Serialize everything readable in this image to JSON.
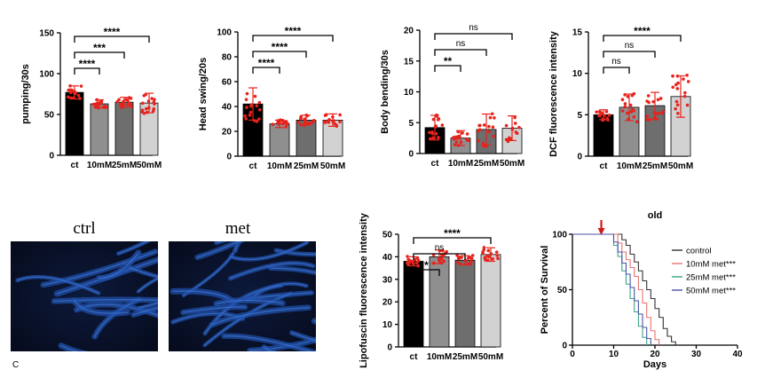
{
  "chart_data": [
    {
      "type": "bar",
      "ylabel": "pumping/30s",
      "categories": [
        "ct",
        "10mM",
        "25mM",
        "50mM"
      ],
      "values": [
        77,
        63,
        65,
        64
      ],
      "errors": [
        8,
        5,
        6,
        12
      ],
      "ylim": [
        0,
        150
      ],
      "yticks": [
        "0",
        "50",
        "100",
        "150"
      ],
      "colors": [
        "#000000",
        "#8f8f8f",
        "#6e6e6e",
        "#d2d2d2"
      ],
      "brackets": [
        {
          "from": 0,
          "to": 1,
          "label": "****"
        },
        {
          "from": 0,
          "to": 2,
          "label": "***"
        },
        {
          "from": 0,
          "to": 3,
          "label": "****"
        }
      ]
    },
    {
      "type": "bar",
      "ylabel": "Head swing/20s",
      "categories": [
        "ct",
        "10mM",
        "25mM",
        "50mM"
      ],
      "values": [
        42,
        26,
        29,
        29
      ],
      "errors": [
        13,
        3,
        4,
        5
      ],
      "ylim": [
        0,
        100
      ],
      "yticks": [
        "0",
        "20",
        "40",
        "60",
        "80",
        "100"
      ],
      "colors": [
        "#000000",
        "#8f8f8f",
        "#6e6e6e",
        "#d2d2d2"
      ],
      "brackets": [
        {
          "from": 0,
          "to": 1,
          "label": "****"
        },
        {
          "from": 0,
          "to": 2,
          "label": "****"
        },
        {
          "from": 0,
          "to": 3,
          "label": "****"
        }
      ]
    },
    {
      "type": "bar",
      "ylabel": "Body bending/30s",
      "categories": [
        "ct",
        "10mM",
        "25mM",
        "50mM"
      ],
      "values": [
        4.2,
        2.5,
        3.9,
        4.1
      ],
      "errors": [
        2.0,
        1.2,
        2.5,
        2.0
      ],
      "ylim": [
        0,
        20
      ],
      "yticks": [
        "0",
        "5",
        "10",
        "15",
        "20"
      ],
      "colors": [
        "#000000",
        "#8f8f8f",
        "#6e6e6e",
        "#d2d2d2"
      ],
      "brackets": [
        {
          "from": 0,
          "to": 1,
          "label": "**"
        },
        {
          "from": 0,
          "to": 2,
          "label": "ns"
        },
        {
          "from": 0,
          "to": 3,
          "label": "ns"
        }
      ]
    },
    {
      "type": "bar",
      "ylabel": "DCF fluorescence intensity",
      "categories": [
        "ct",
        "10mM",
        "25mM",
        "50mM"
      ],
      "values": [
        5.0,
        5.9,
        6.1,
        7.2
      ],
      "errors": [
        0.6,
        1.6,
        1.6,
        2.5
      ],
      "ylim": [
        0,
        15
      ],
      "yticks": [
        "0",
        "5",
        "10",
        "15"
      ],
      "colors": [
        "#000000",
        "#8f8f8f",
        "#6e6e6e",
        "#d2d2d2"
      ],
      "brackets": [
        {
          "from": 0,
          "to": 1,
          "label": "ns"
        },
        {
          "from": 0,
          "to": 2,
          "label": "ns"
        },
        {
          "from": 0,
          "to": 3,
          "label": "****"
        }
      ]
    },
    {
      "type": "bar",
      "ylabel": "Lipofuscin fluorescence intensity",
      "categories": [
        "ct",
        "10mM",
        "25mM",
        "50mM"
      ],
      "values": [
        38,
        40,
        38.5,
        41
      ],
      "errors": [
        2,
        3,
        2,
        3
      ],
      "ylim": [
        0,
        50
      ],
      "yticks": [
        "0",
        "10",
        "20",
        "30",
        "40",
        "50"
      ],
      "colors": [
        "#000000",
        "#8f8f8f",
        "#6e6e6e",
        "#d2d2d2"
      ],
      "brackets": [
        {
          "from": 0,
          "to": 1,
          "label": "*"
        },
        {
          "from": 0,
          "to": 2,
          "label": "ns"
        },
        {
          "from": 0,
          "to": 3,
          "label": "****"
        }
      ]
    },
    {
      "type": "line",
      "title": "old",
      "xlabel": "Days",
      "ylabel": "Percent of Survival",
      "xlim": [
        0,
        40
      ],
      "ylim": [
        0,
        100
      ],
      "xticks": [
        "0",
        "10",
        "20",
        "30",
        "40"
      ],
      "yticks": [
        "0",
        "50",
        "100"
      ],
      "arrow_x": 7,
      "series": [
        {
          "name": "control",
          "color": "#333333",
          "x": [
            0,
            10,
            12,
            13,
            14,
            15,
            16,
            17,
            18,
            19,
            20,
            21,
            22,
            23,
            24,
            25
          ],
          "y": [
            100,
            100,
            95,
            90,
            82,
            75,
            67,
            58,
            50,
            42,
            33,
            25,
            15,
            8,
            3,
            0
          ]
        },
        {
          "name": "10mM met***",
          "color": "#e8736f",
          "x": [
            0,
            10,
            11,
            12,
            13,
            14,
            15,
            16,
            17,
            18,
            19,
            20,
            21
          ],
          "y": [
            100,
            100,
            92,
            84,
            77,
            70,
            62,
            50,
            38,
            25,
            13,
            5,
            0
          ]
        },
        {
          "name": "25mM met***",
          "color": "#3aa58a",
          "x": [
            0,
            9,
            10,
            11,
            12,
            13,
            14,
            15,
            16,
            17,
            18
          ],
          "y": [
            100,
            100,
            90,
            80,
            67,
            55,
            42,
            30,
            17,
            7,
            0
          ]
        },
        {
          "name": "50mM met***",
          "color": "#4a52a6",
          "x": [
            0,
            9,
            10,
            11,
            12,
            13,
            14,
            15,
            16,
            17,
            18,
            19
          ],
          "y": [
            100,
            100,
            93,
            84,
            74,
            64,
            52,
            40,
            28,
            16,
            6,
            0
          ]
        }
      ]
    }
  ],
  "photos": {
    "left_label": "ctrl",
    "right_label": "met"
  },
  "panel_mark": "C"
}
